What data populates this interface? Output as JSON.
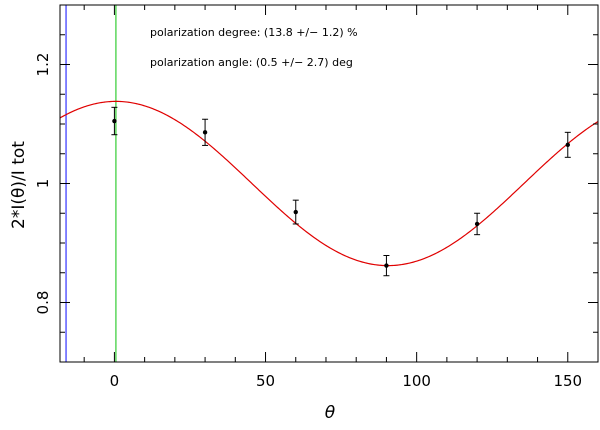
{
  "chart_data": {
    "type": "scatter",
    "title": "",
    "xlabel": "θ",
    "ylabel": "2*I(θ)/I tot",
    "xlim": [
      -18,
      160
    ],
    "ylim": [
      0.7,
      1.3
    ],
    "x_ticks": [
      0,
      50,
      100,
      150
    ],
    "y_ticks": [
      0.8,
      1,
      1.2
    ],
    "x_tick_labels": [
      "0",
      "50",
      "100",
      "150"
    ],
    "y_tick_labels": [
      "0.8",
      "1",
      "1.2"
    ],
    "annotations": [
      "polarization degree: (13.8 +/− 1.2) %",
      "polarization angle: (0.5 +/− 2.7) deg"
    ],
    "series": [
      {
        "kind": "points_with_errorbars",
        "color": "#000000",
        "points": [
          {
            "x": 0,
            "y": 1.105,
            "err": 0.023
          },
          {
            "x": 30,
            "y": 1.086,
            "err": 0.022
          },
          {
            "x": 60,
            "y": 0.952,
            "err": 0.02
          },
          {
            "x": 90,
            "y": 0.862,
            "err": 0.017
          },
          {
            "x": 120,
            "y": 0.932,
            "err": 0.018
          },
          {
            "x": 150,
            "y": 1.065,
            "err": 0.021
          }
        ]
      },
      {
        "kind": "fit_curve",
        "color": "#e00000",
        "model": "1 + A*cos(2*(theta - phi))",
        "A": 0.138,
        "phi_deg": 0.5
      }
    ],
    "vertical_lines": [
      {
        "x": -16,
        "color": "#3333ff"
      },
      {
        "x": 0.5,
        "color": "#33cc33"
      }
    ],
    "grid": false,
    "legend": "none"
  }
}
